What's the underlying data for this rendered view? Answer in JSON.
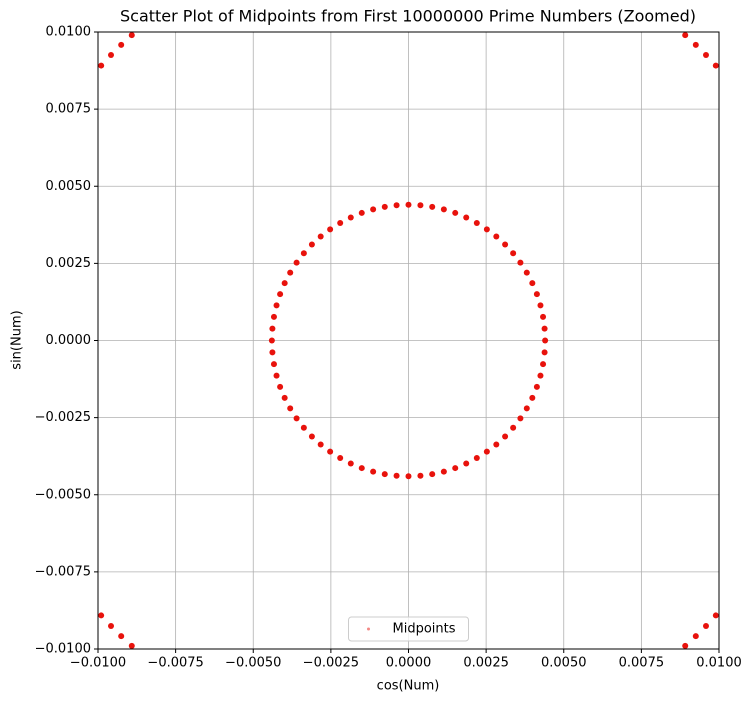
{
  "chart_data": {
    "type": "scatter",
    "title": "Scatter Plot of Midpoints from First 10000000 Prime Numbers (Zoomed)",
    "x_label": "cos(Num)",
    "y_label": "sin(Num)",
    "x": [
      0.0044,
      0.004383,
      0.004333,
      0.00425,
      0.004135,
      0.003988,
      0.00381,
      0.003604,
      0.00337,
      0.003111,
      0.002828,
      0.002524,
      0.0022,
      0.001859,
      0.001505,
      0.001139,
      0.000764,
      0.000384,
      0,
      -0.000384,
      -0.000764,
      -0.001139,
      -0.001505,
      -0.001859,
      -0.0022,
      -0.002524,
      -0.002828,
      -0.003111,
      -0.00337,
      -0.003604,
      -0.00381,
      -0.003988,
      -0.004135,
      -0.00425,
      -0.004333,
      -0.004383,
      -0.0044,
      -0.004383,
      -0.004333,
      -0.00425,
      -0.004135,
      -0.003988,
      -0.00381,
      -0.003604,
      -0.00337,
      -0.003111,
      -0.002828,
      -0.002524,
      -0.0022,
      -0.001859,
      -0.001505,
      -0.001139,
      -0.000764,
      -0.000384,
      0,
      0.000384,
      0.000764,
      0.001139,
      0.001505,
      0.001859,
      0.0022,
      0.002524,
      0.002828,
      0.003111,
      0.00337,
      0.003604,
      0.00381,
      0.003988,
      0.004135,
      0.00425,
      0.004333,
      0.004383,
      0.009898,
      0.009581,
      0.009253,
      0.008912,
      -0.009898,
      -0.009581,
      -0.009253,
      -0.008912,
      -0.009898,
      -0.009581,
      -0.009253,
      -0.008912,
      0.009898,
      0.009581,
      0.009253,
      0.008912
    ],
    "series": [
      {
        "name": "Midpoints",
        "color": "#e8120c",
        "values": [
          0,
          0.000384,
          0.000764,
          0.001139,
          0.001505,
          0.001859,
          0.0022,
          0.002524,
          0.002828,
          0.003111,
          0.00337,
          0.003604,
          0.00381,
          0.003988,
          0.004135,
          0.00425,
          0.004333,
          0.004383,
          0.0044,
          0.004383,
          0.004333,
          0.00425,
          0.004135,
          0.003988,
          0.00381,
          0.003604,
          0.00337,
          0.003111,
          0.002828,
          0.002524,
          0.0022,
          0.001859,
          0.001505,
          0.001139,
          0.000764,
          0.000384,
          0,
          -0.000384,
          -0.000764,
          -0.001139,
          -0.001505,
          -0.001859,
          -0.0022,
          -0.002524,
          -0.002828,
          -0.003111,
          -0.00337,
          -0.003604,
          -0.00381,
          -0.003988,
          -0.004135,
          -0.00425,
          -0.004333,
          -0.004383,
          -0.0044,
          -0.004383,
          -0.004333,
          -0.00425,
          -0.004135,
          -0.003988,
          -0.00381,
          -0.003604,
          -0.00337,
          -0.003111,
          -0.002828,
          -0.002524,
          -0.0022,
          -0.001859,
          -0.001505,
          -0.001139,
          -0.000764,
          -0.000384,
          0.008912,
          0.009253,
          0.009581,
          0.009898,
          0.008912,
          0.009253,
          0.009581,
          0.009898,
          -0.008912,
          -0.009253,
          -0.009581,
          -0.009898,
          -0.008912,
          -0.009253,
          -0.009581,
          -0.009898
        ]
      }
    ],
    "xlim": [
      -0.01,
      0.01
    ],
    "ylim": [
      -0.01,
      0.01
    ],
    "xticks": [
      {
        "value": -0.01,
        "label": "−0.0100"
      },
      {
        "value": -0.0075,
        "label": "−0.0075"
      },
      {
        "value": -0.005,
        "label": "−0.0050"
      },
      {
        "value": -0.0025,
        "label": "−0.0025"
      },
      {
        "value": 0,
        "label": "0.0000"
      },
      {
        "value": 0.0025,
        "label": "0.0025"
      },
      {
        "value": 0.005,
        "label": "0.0050"
      },
      {
        "value": 0.0075,
        "label": "0.0075"
      },
      {
        "value": 0.01,
        "label": "0.0100"
      }
    ],
    "yticks": [
      {
        "value": -0.01,
        "label": "−0.0100"
      },
      {
        "value": -0.0075,
        "label": "−0.0075"
      },
      {
        "value": -0.005,
        "label": "−0.0050"
      },
      {
        "value": -0.0025,
        "label": "−0.0025"
      },
      {
        "value": 0,
        "label": "0.0000"
      },
      {
        "value": 0.0025,
        "label": "0.0025"
      },
      {
        "value": 0.005,
        "label": "0.0050"
      },
      {
        "value": 0.0075,
        "label": "0.0075"
      },
      {
        "value": 0.01,
        "label": "0.0100"
      }
    ],
    "grid": true,
    "legend": "lower center"
  }
}
